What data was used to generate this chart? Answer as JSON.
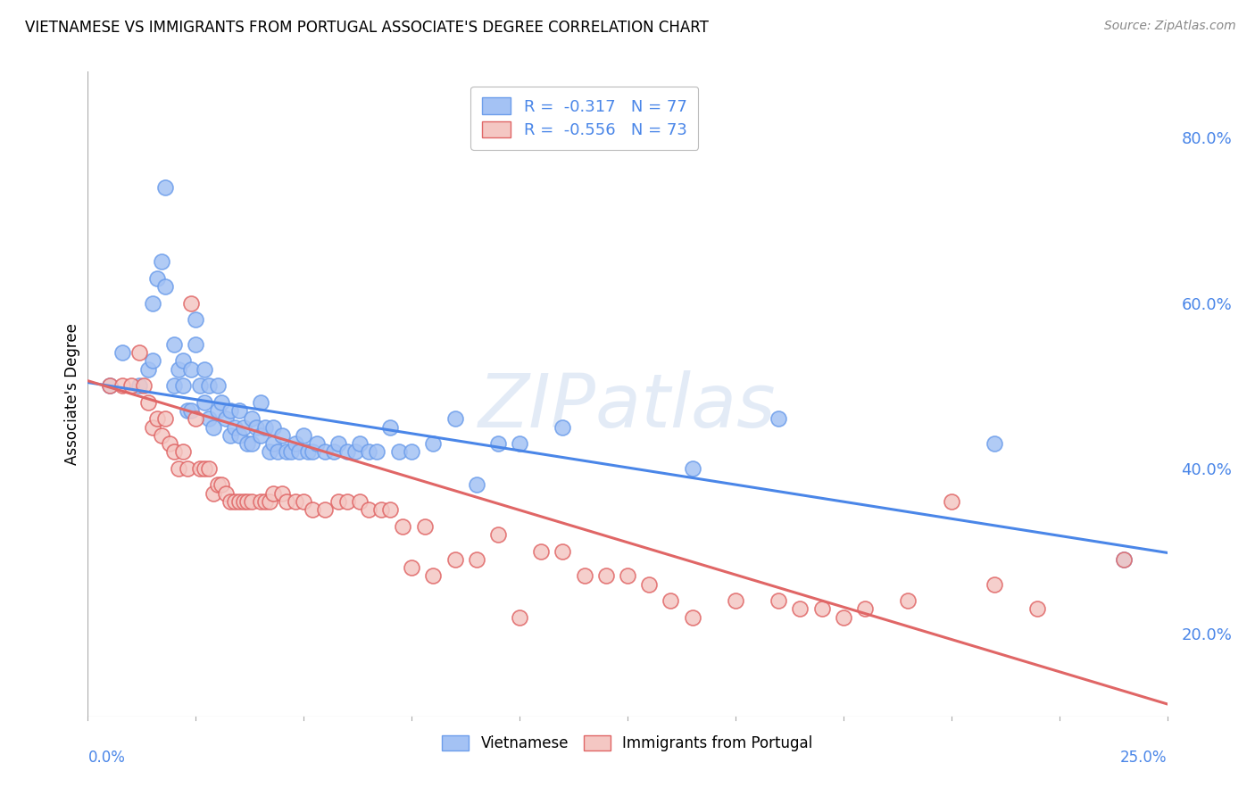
{
  "title": "VIETNAMESE VS IMMIGRANTS FROM PORTUGAL ASSOCIATE'S DEGREE CORRELATION CHART",
  "source": "Source: ZipAtlas.com",
  "ylabel": "Associate's Degree",
  "ytick_vals": [
    0.2,
    0.4,
    0.6,
    0.8
  ],
  "ytick_labels": [
    "20.0%",
    "40.0%",
    "60.0%",
    "80.0%"
  ],
  "xmin": 0.0,
  "xmax": 0.25,
  "ymin": 0.1,
  "ymax": 0.88,
  "legend_blue_R": "-0.317",
  "legend_blue_N": "77",
  "legend_pink_R": "-0.556",
  "legend_pink_N": "73",
  "blue_fill": "#a4c2f4",
  "blue_edge": "#6d9eeb",
  "pink_fill": "#f4c7c3",
  "pink_edge": "#e06666",
  "blue_line": "#4a86e8",
  "pink_line": "#e06666",
  "watermark_color": "#c8d8ef",
  "background": "#ffffff",
  "grid_color": "#d0d0d0",
  "tick_color": "#4a86e8",
  "blue_x": [
    0.005,
    0.008,
    0.012,
    0.014,
    0.015,
    0.015,
    0.016,
    0.017,
    0.018,
    0.018,
    0.02,
    0.02,
    0.021,
    0.022,
    0.022,
    0.023,
    0.024,
    0.024,
    0.025,
    0.025,
    0.026,
    0.027,
    0.027,
    0.028,
    0.028,
    0.029,
    0.03,
    0.03,
    0.031,
    0.032,
    0.033,
    0.033,
    0.034,
    0.035,
    0.035,
    0.036,
    0.037,
    0.038,
    0.038,
    0.039,
    0.04,
    0.04,
    0.041,
    0.042,
    0.043,
    0.043,
    0.044,
    0.045,
    0.046,
    0.047,
    0.048,
    0.049,
    0.05,
    0.051,
    0.052,
    0.053,
    0.055,
    0.057,
    0.058,
    0.06,
    0.062,
    0.063,
    0.065,
    0.067,
    0.07,
    0.072,
    0.075,
    0.08,
    0.085,
    0.09,
    0.095,
    0.1,
    0.11,
    0.14,
    0.16,
    0.21,
    0.24
  ],
  "blue_y": [
    0.5,
    0.54,
    0.5,
    0.52,
    0.53,
    0.6,
    0.63,
    0.65,
    0.62,
    0.74,
    0.5,
    0.55,
    0.52,
    0.5,
    0.53,
    0.47,
    0.47,
    0.52,
    0.55,
    0.58,
    0.5,
    0.48,
    0.52,
    0.46,
    0.5,
    0.45,
    0.47,
    0.5,
    0.48,
    0.46,
    0.44,
    0.47,
    0.45,
    0.44,
    0.47,
    0.45,
    0.43,
    0.46,
    0.43,
    0.45,
    0.44,
    0.48,
    0.45,
    0.42,
    0.45,
    0.43,
    0.42,
    0.44,
    0.42,
    0.42,
    0.43,
    0.42,
    0.44,
    0.42,
    0.42,
    0.43,
    0.42,
    0.42,
    0.43,
    0.42,
    0.42,
    0.43,
    0.42,
    0.42,
    0.45,
    0.42,
    0.42,
    0.43,
    0.46,
    0.38,
    0.43,
    0.43,
    0.45,
    0.4,
    0.46,
    0.43,
    0.29
  ],
  "pink_x": [
    0.005,
    0.008,
    0.01,
    0.012,
    0.013,
    0.014,
    0.015,
    0.016,
    0.017,
    0.018,
    0.019,
    0.02,
    0.021,
    0.022,
    0.023,
    0.024,
    0.025,
    0.026,
    0.027,
    0.028,
    0.029,
    0.03,
    0.031,
    0.032,
    0.033,
    0.034,
    0.035,
    0.036,
    0.037,
    0.038,
    0.04,
    0.041,
    0.042,
    0.043,
    0.045,
    0.046,
    0.048,
    0.05,
    0.052,
    0.055,
    0.058,
    0.06,
    0.063,
    0.065,
    0.068,
    0.07,
    0.073,
    0.075,
    0.078,
    0.08,
    0.085,
    0.09,
    0.095,
    0.1,
    0.105,
    0.11,
    0.115,
    0.12,
    0.125,
    0.13,
    0.135,
    0.14,
    0.15,
    0.16,
    0.165,
    0.17,
    0.175,
    0.18,
    0.19,
    0.2,
    0.21,
    0.22,
    0.24
  ],
  "pink_y": [
    0.5,
    0.5,
    0.5,
    0.54,
    0.5,
    0.48,
    0.45,
    0.46,
    0.44,
    0.46,
    0.43,
    0.42,
    0.4,
    0.42,
    0.4,
    0.6,
    0.46,
    0.4,
    0.4,
    0.4,
    0.37,
    0.38,
    0.38,
    0.37,
    0.36,
    0.36,
    0.36,
    0.36,
    0.36,
    0.36,
    0.36,
    0.36,
    0.36,
    0.37,
    0.37,
    0.36,
    0.36,
    0.36,
    0.35,
    0.35,
    0.36,
    0.36,
    0.36,
    0.35,
    0.35,
    0.35,
    0.33,
    0.28,
    0.33,
    0.27,
    0.29,
    0.29,
    0.32,
    0.22,
    0.3,
    0.3,
    0.27,
    0.27,
    0.27,
    0.26,
    0.24,
    0.22,
    0.24,
    0.24,
    0.23,
    0.23,
    0.22,
    0.23,
    0.24,
    0.36,
    0.26,
    0.23,
    0.29
  ]
}
